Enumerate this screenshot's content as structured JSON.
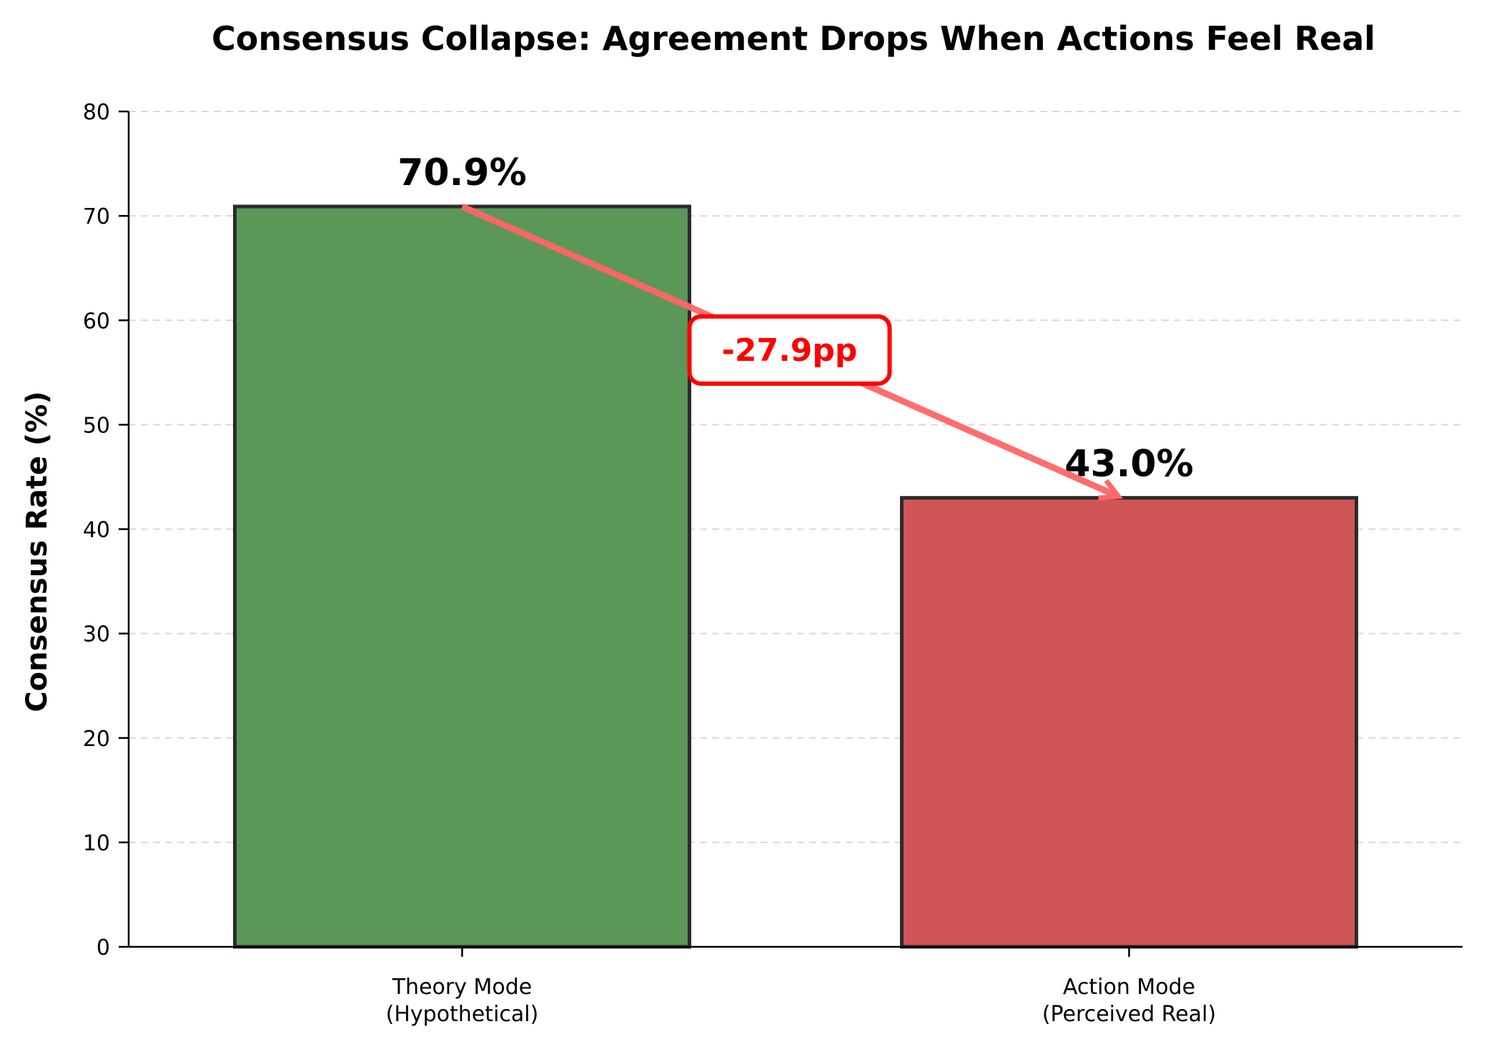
{
  "chart_data": {
    "type": "bar",
    "title": "Consensus Collapse: Agreement Drops When Actions Feel Real",
    "xlabel": "",
    "ylabel": "Consensus Rate (%)",
    "ylim": [
      0,
      80
    ],
    "yticks": [
      0,
      10,
      20,
      30,
      40,
      50,
      60,
      70,
      80
    ],
    "categories": [
      "Theory Mode\n(Hypothetical)",
      "Action Mode\n(Perceived Real)"
    ],
    "values": [
      70.9,
      43.0
    ],
    "data_labels": [
      "70.9%",
      "43.0%"
    ],
    "bar_colors": [
      "#5a9759",
      "#d15557"
    ],
    "grid": "y-dashed",
    "annotation": {
      "text": "-27.9pp",
      "from_category": 0,
      "to_category": 1,
      "color": "#ff0000",
      "arrow_color": "#ff6666"
    }
  }
}
